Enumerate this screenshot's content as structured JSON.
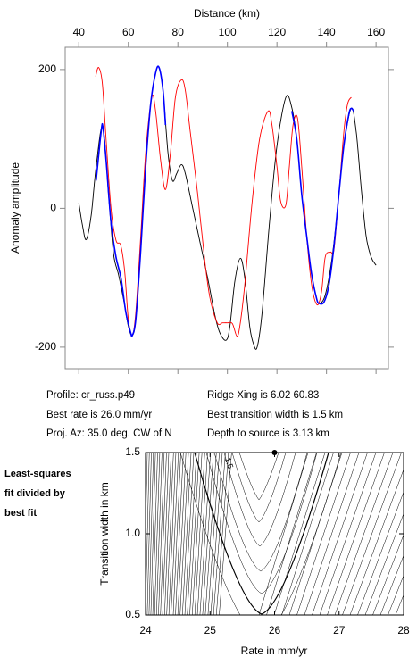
{
  "chart_data": [
    {
      "type": "line",
      "x_label": "Distance (km)",
      "y_label": "Anomaly amplitude",
      "xlim": [
        34.5,
        165
      ],
      "xticks": [
        40,
        60,
        80,
        100,
        120,
        140,
        160
      ],
      "ylim": [
        -231,
        232
      ],
      "yticks": [
        -200,
        0,
        200
      ],
      "series": [
        {
          "color": "#000000",
          "x": [
            40,
            41.5,
            43,
            45,
            47,
            49.7,
            52,
            54,
            56,
            58,
            60,
            61.6,
            63,
            65,
            67,
            69,
            71,
            72.4,
            74,
            76,
            77.8,
            79.5,
            81.4,
            83,
            86,
            89,
            92,
            95,
            97,
            99.5,
            101,
            103,
            105.2,
            107,
            109,
            110.5,
            112,
            114,
            117,
            120,
            123.6,
            126,
            128,
            130,
            132,
            134,
            136,
            137,
            139,
            141,
            143,
            145,
            147,
            150,
            152,
            154,
            156,
            158,
            160
          ],
          "y": [
            8,
            -25,
            -45,
            -10,
            60,
            118,
            20,
            -65,
            -95,
            -130,
            -170,
            -183,
            -160,
            -60,
            60,
            150,
            195,
            203,
            170,
            80,
            40,
            50,
            63,
            50,
            0,
            -50,
            -100,
            -155,
            -180,
            -190,
            -170,
            -105,
            -72,
            -100,
            -170,
            -195,
            -200,
            -150,
            -20,
            90,
            160,
            145,
            100,
            20,
            -40,
            -95,
            -130,
            -137,
            -130,
            -100,
            -50,
            20,
            90,
            144,
            110,
            30,
            -40,
            -70,
            -82
          ]
        },
        {
          "color": "#ff0000",
          "x": [
            46.8,
            48,
            49.5,
            51,
            53,
            55,
            56.9,
            58.5,
            60,
            61.6,
            63,
            65,
            67,
            69.5,
            71,
            73,
            75,
            77,
            79,
            81.4,
            83,
            85,
            88,
            91,
            93,
            95.9,
            98,
            100,
            102,
            103.8,
            105,
            107,
            110,
            113,
            116.4,
            118,
            120,
            121.5,
            123.6,
            125,
            126.5,
            128.3,
            130,
            132,
            134,
            136.2,
            138,
            139.5,
            141.6,
            143,
            145,
            147,
            148.5,
            150
          ],
          "y": [
            190,
            203,
            180,
            100,
            0,
            -46,
            -53,
            -90,
            -160,
            -183,
            -150,
            -40,
            80,
            160,
            140,
            70,
            27,
            80,
            160,
            185,
            170,
            110,
            20,
            -80,
            -130,
            -165,
            -165,
            -165,
            -166,
            -184,
            -170,
            -110,
            10,
            100,
            140,
            120,
            60,
            10,
            5,
            60,
            120,
            130,
            60,
            -40,
            -110,
            -139,
            -120,
            -70,
            -63,
            -60,
            20,
            110,
            150,
            160
          ]
        },
        {
          "color": "#0000ff",
          "x": [
            47,
            49,
            49.7,
            51,
            53,
            55,
            57,
            59,
            61,
            61.6,
            63,
            65,
            67,
            69,
            71,
            72.4,
            74,
            75,
            100,
            126,
            128,
            130,
            132,
            134,
            136,
            137,
            139,
            141,
            143,
            145,
            147,
            149,
            150,
            151
          ],
          "y": [
            40,
            110,
            118,
            70,
            -20,
            -70,
            -100,
            -150,
            -180,
            -183,
            -160,
            -60,
            60,
            150,
            195,
            203,
            170,
            120,
            null,
            140,
            100,
            20,
            -40,
            -95,
            -130,
            -137,
            -135,
            -110,
            -55,
            20,
            90,
            135,
            144,
            140
          ]
        }
      ]
    },
    {
      "type": "contour",
      "x_label": "Rate in mm/yr",
      "y_label": "Transition width in km",
      "xlim": [
        24,
        28
      ],
      "xticks": [
        24,
        25,
        26,
        27,
        28
      ],
      "ylim": [
        0.5,
        1.5
      ],
      "yticks": [
        0.5,
        {
          "value": 1,
          "label": "1.0"
        },
        1.5
      ],
      "best_fit": {
        "x": 26,
        "y": 1.5
      },
      "contour_label": 1.5,
      "note": [
        "Least-squares",
        "fit divided by",
        "best fit"
      ]
    }
  ],
  "info": {
    "profile": "Profile: cr_russ.p49",
    "ridge": "Ridge Xing is 6.02 60.83",
    "rate": "Best rate is 26.0 mm/yr",
    "width": "Best transition width is 1.5 km",
    "azimuth": "Proj. Az: 35.0 deg. CW of N",
    "depth": "Depth to source is   3.13 km"
  }
}
